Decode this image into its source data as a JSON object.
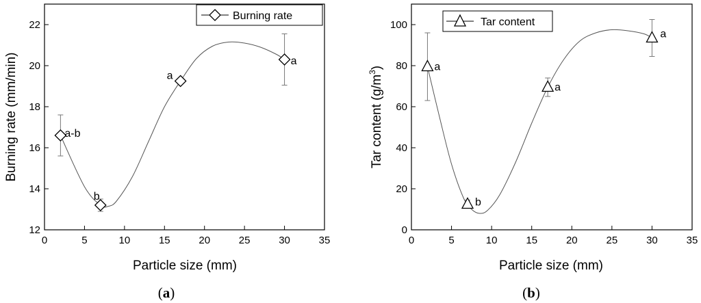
{
  "chart_data": [
    {
      "type": "scatter",
      "panel_label": "a",
      "xlabel": "Particle size (mm)",
      "ylabel": "Burning rate (mm/min)",
      "xlim": [
        0,
        35
      ],
      "ylim": [
        12,
        23
      ],
      "xticks": [
        0,
        5,
        10,
        15,
        20,
        25,
        30,
        35
      ],
      "yticks": [
        12,
        14,
        16,
        18,
        20,
        22
      ],
      "legend": {
        "label": "Burning rate",
        "position": "top-right",
        "marker": "diamond"
      },
      "series": [
        {
          "name": "Burning rate",
          "marker": "diamond",
          "points": [
            {
              "x": 2,
              "y": 16.6,
              "err": 1.0,
              "label": "a-b"
            },
            {
              "x": 7,
              "y": 13.2,
              "err": 0.3,
              "label": "b"
            },
            {
              "x": 17,
              "y": 19.25,
              "err": 0.1,
              "label": "a"
            },
            {
              "x": 30,
              "y": 20.3,
              "err": 1.25,
              "label": "a"
            }
          ],
          "fit_curve": [
            [
              2,
              16.6
            ],
            [
              5,
              14.1
            ],
            [
              7,
              13.2
            ],
            [
              8,
              13.15
            ],
            [
              9,
              13.4
            ],
            [
              11,
              14.6
            ],
            [
              13,
              16.3
            ],
            [
              15,
              18.0
            ],
            [
              17,
              19.25
            ],
            [
              19,
              20.35
            ],
            [
              21,
              20.95
            ],
            [
              23,
              21.15
            ],
            [
              25,
              21.1
            ],
            [
              27,
              20.9
            ],
            [
              29,
              20.55
            ],
            [
              30,
              20.3
            ]
          ]
        }
      ]
    },
    {
      "type": "scatter",
      "panel_label": "b",
      "xlabel": "Particle size (mm)",
      "ylabel_main": "Tar content (g/m",
      "ylabel_sup": "3",
      "ylabel_end": ")",
      "xlim": [
        0,
        35
      ],
      "ylim": [
        0,
        110
      ],
      "xticks": [
        0,
        5,
        10,
        15,
        20,
        25,
        30,
        35
      ],
      "yticks": [
        0,
        20,
        40,
        60,
        80,
        100
      ],
      "legend": {
        "label": "Tar content",
        "position": "top-left",
        "marker": "triangle"
      },
      "series": [
        {
          "name": "Tar content",
          "marker": "triangle",
          "points": [
            {
              "x": 2,
              "y": 79.5,
              "err": 16.5,
              "label": "a"
            },
            {
              "x": 7,
              "y": 12.5,
              "err": 2.0,
              "label": "b"
            },
            {
              "x": 17,
              "y": 69.5,
              "err": 4.5,
              "label": "a"
            },
            {
              "x": 30,
              "y": 93.5,
              "err": 9.0,
              "label": "a"
            }
          ],
          "fit_curve": [
            [
              2,
              79.5
            ],
            [
              3.5,
              55
            ],
            [
              5,
              32
            ],
            [
              6.5,
              15.5
            ],
            [
              7.5,
              10
            ],
            [
              8.5,
              8
            ],
            [
              9.5,
              9.5
            ],
            [
              11,
              17
            ],
            [
              13,
              33
            ],
            [
              15,
              52
            ],
            [
              17,
              69.5
            ],
            [
              19,
              83
            ],
            [
              21,
              92
            ],
            [
              23,
              96
            ],
            [
              25,
              97.5
            ],
            [
              27,
              97
            ],
            [
              29,
              95.5
            ],
            [
              30,
              93.5
            ]
          ]
        }
      ]
    }
  ]
}
